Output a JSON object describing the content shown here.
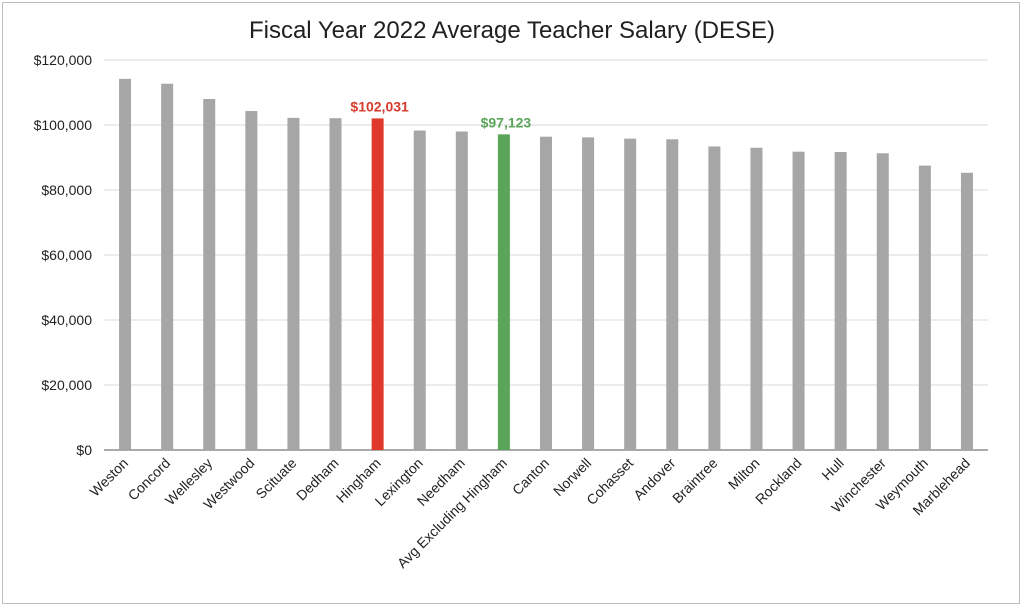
{
  "chart_data": {
    "type": "bar",
    "title": "Fiscal Year 2022 Average Teacher Salary (DESE)",
    "xlabel": "",
    "ylabel": "",
    "ylim": [
      0,
      120000
    ],
    "yticks": [
      "$0",
      "$20,000",
      "$40,000",
      "$60,000",
      "$80,000",
      "$100,000",
      "$120,000"
    ],
    "ytick_values": [
      0,
      20000,
      40000,
      60000,
      80000,
      100000,
      120000
    ],
    "grid": true,
    "legend": "none",
    "categories": [
      "Weston",
      "Concord",
      "Wellesley",
      "Westwood",
      "Scituate",
      "Dedham",
      "Hingham",
      "Lexington",
      "Needham",
      "Avg Excluding Hingham",
      "Canton",
      "Norwell",
      "Cohasset",
      "Andover",
      "Braintree",
      "Milton",
      "Rockland",
      "Hull",
      "Winchester",
      "Weymouth",
      "Marblehead"
    ],
    "values": [
      114200,
      112700,
      108000,
      104300,
      102200,
      102100,
      102031,
      98300,
      98000,
      97123,
      96400,
      96200,
      95800,
      95600,
      93400,
      93000,
      91800,
      91700,
      91300,
      87500,
      85300
    ],
    "colors": {
      "default": "#a6a6a6",
      "Hingham": "#e0392b",
      "Avg Excluding Hingham": "#5ba55b"
    },
    "data_labels": [
      {
        "category": "Hingham",
        "text": "$102,031",
        "color": "#d63a2a"
      },
      {
        "category": "Avg Excluding Hingham",
        "text": "$97,123",
        "color": "#5ba55b"
      }
    ]
  }
}
